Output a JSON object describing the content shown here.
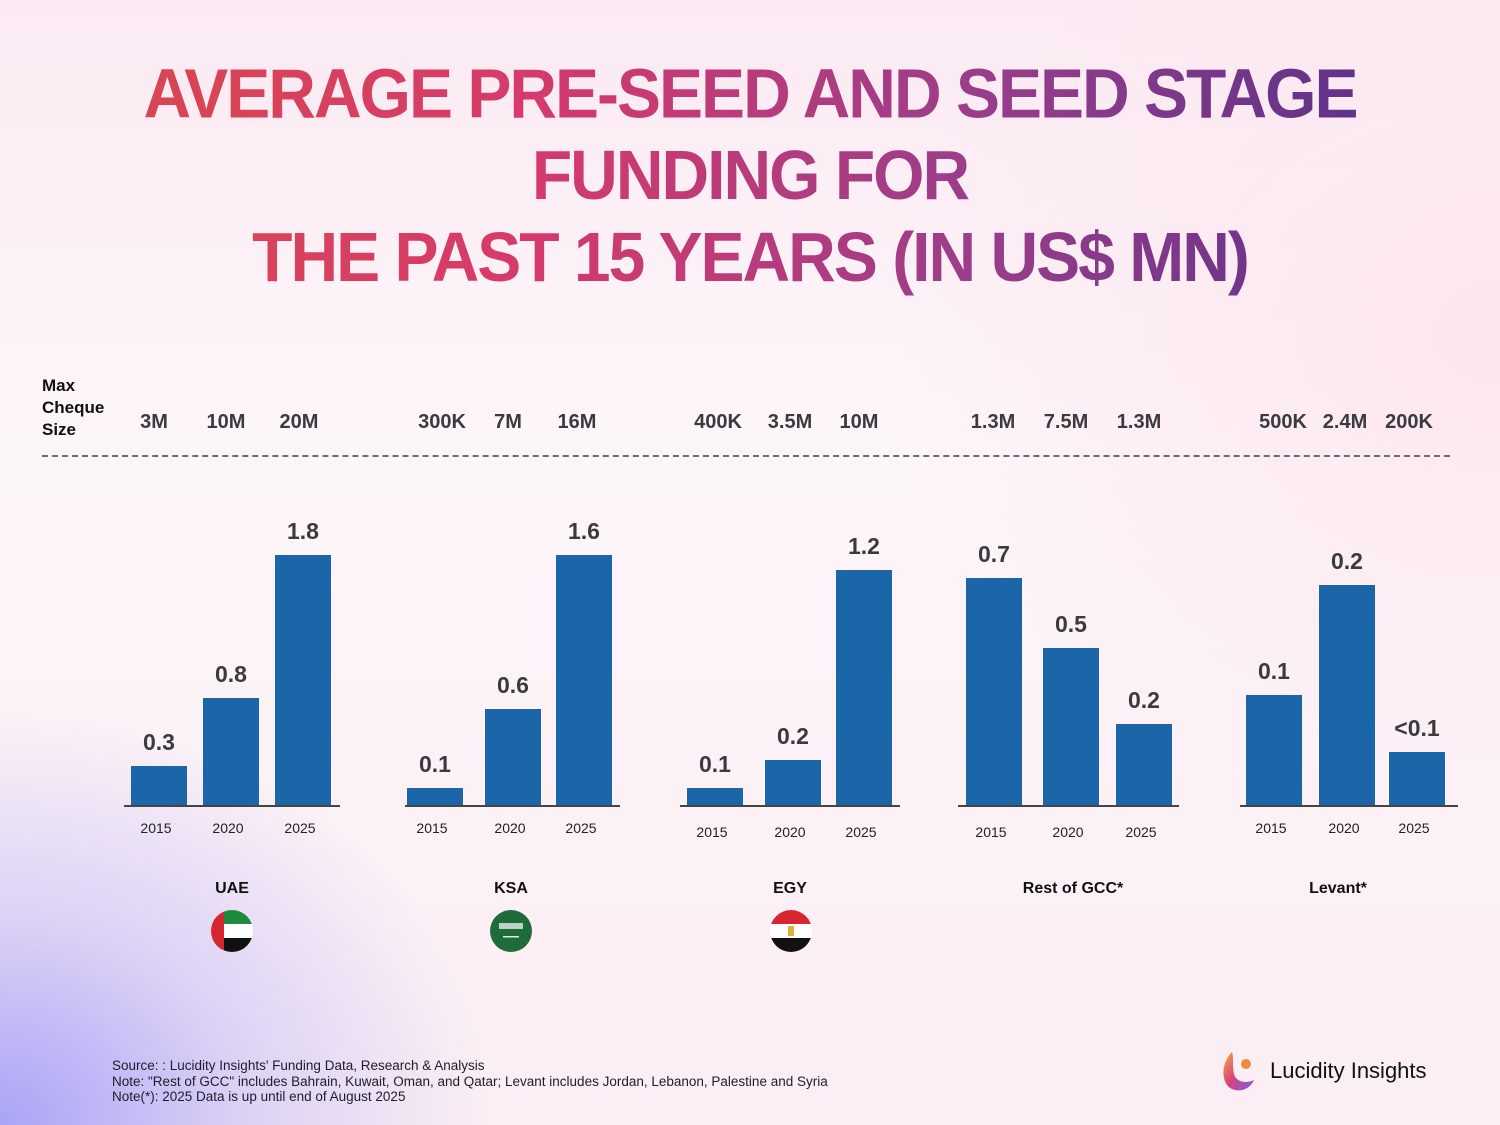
{
  "chart_data": {
    "type": "bar",
    "title": "AVERAGE PRE-SEED AND SEED STAGE FUNDING FOR THE PAST 15 YEARS (IN US$ MN)",
    "title_lines": [
      "AVERAGE PRE-SEED AND SEED STAGE FUNDING FOR",
      "THE PAST 15 YEARS (IN US$ MN)"
    ],
    "xlabel": "",
    "ylabel": "",
    "categories": [
      "2015",
      "2020",
      "2025"
    ],
    "bar_color": "#1a66a8",
    "scaling_note": "each group scaled independently",
    "max_cheque_label": [
      "Max",
      "Cheque",
      "Size"
    ],
    "groups": [
      {
        "name": "UAE",
        "flag": "uae-flag",
        "values": [
          0.3,
          0.8,
          1.8
        ],
        "value_labels": [
          "0.3",
          "0.8",
          "1.8"
        ],
        "max_cheque": [
          "3M",
          "10M",
          "20M"
        ],
        "bar_heights_relative": [
          0.156,
          0.428,
          1.0
        ]
      },
      {
        "name": "KSA",
        "flag": "ksa-flag",
        "values": [
          0.1,
          0.6,
          1.6
        ],
        "value_labels": [
          "0.1",
          "0.6",
          "1.6"
        ],
        "max_cheque": [
          "300K",
          "7M",
          "16M"
        ],
        "bar_heights_relative": [
          0.068,
          0.384,
          1.0
        ]
      },
      {
        "name": "EGY",
        "flag": "egypt-flag",
        "values": [
          0.1,
          0.2,
          1.2
        ],
        "value_labels": [
          "0.1",
          "0.2",
          "1.2"
        ],
        "max_cheque": [
          "400K",
          "3.5M",
          "10M"
        ],
        "bar_heights_relative": [
          0.068,
          0.18,
          0.94
        ]
      },
      {
        "name": "Rest of GCC*",
        "flag": "",
        "values": [
          0.7,
          0.5,
          0.2
        ],
        "value_labels": [
          "0.7",
          "0.5",
          "0.2"
        ],
        "max_cheque": [
          "1.3M",
          "7.5M",
          "1.3M"
        ],
        "bar_heights_relative": [
          0.908,
          0.628,
          0.324
        ]
      },
      {
        "name": "Levant*",
        "flag": "",
        "values": [
          0.1,
          0.2,
          0.05
        ],
        "value_labels": [
          "0.1",
          "0.2",
          "<0.1"
        ],
        "max_cheque": [
          "500K",
          "2.4M",
          "200K"
        ],
        "bar_heights_relative": [
          0.44,
          0.88,
          0.212
        ]
      }
    ]
  },
  "footer": {
    "source": "Source: : Lucidity Insights' Funding Data, Research & Analysis",
    "note1": "Note: \"Rest of GCC\" includes Bahrain, Kuwait, Oman, and Qatar; Levant includes Jordan, Lebanon, Palestine and Syria",
    "note2": "Note(*): 2025 Data is up until end of August 2025"
  },
  "brand": {
    "name": "Lucidity Insights",
    "logo_icon": "lucidity-logo-icon"
  }
}
